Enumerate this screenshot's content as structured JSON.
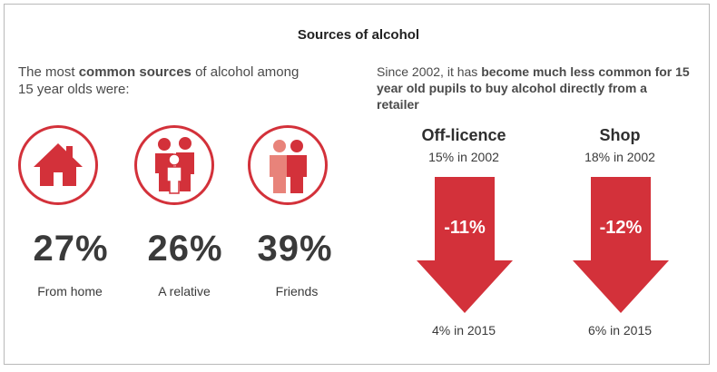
{
  "title": "Sources of alcohol",
  "left": {
    "intro_part1": "The most ",
    "intro_bold": "common sources",
    "intro_part2": " of alcohol among 15 year olds were:",
    "sources": [
      {
        "icon": "house-icon",
        "percent": "27%",
        "label": "From home"
      },
      {
        "icon": "family-icon",
        "percent": "26%",
        "label": "A relative"
      },
      {
        "icon": "friends-icon",
        "percent": "39%",
        "label": "Friends"
      }
    ]
  },
  "right": {
    "intro_part1": "Since 2002, it has ",
    "intro_bold": "become much less common for 15 year old pupils to buy alcohol directly from a retailer",
    "retailers": [
      {
        "name": "Off-licence",
        "start": "15% in 2002",
        "change": "-11%",
        "end": "4% in 2015"
      },
      {
        "name": "Shop",
        "start": "18% in 2002",
        "change": "-12%",
        "end": "6% in 2015"
      }
    ]
  },
  "colors": {
    "accent": "#d3313a",
    "text": "#3a3a3a"
  }
}
